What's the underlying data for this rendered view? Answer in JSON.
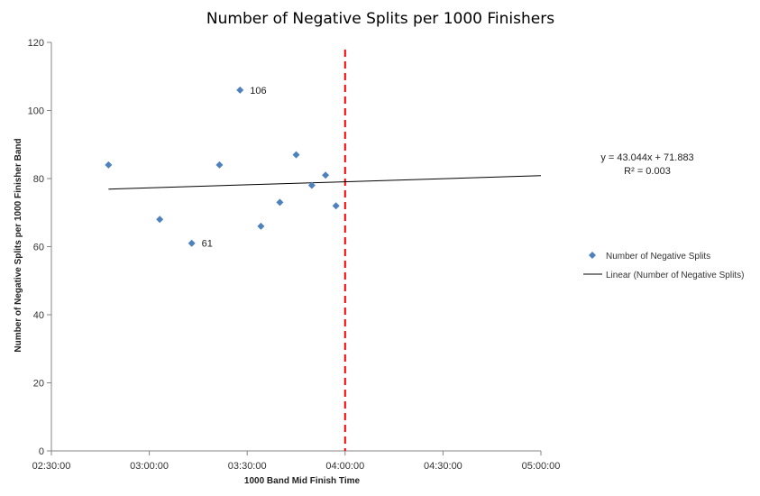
{
  "chart_data": {
    "type": "scatter",
    "title": "Number of Negative Splits per 1000 Finishers",
    "xlabel": "1000 Band Mid Finish Time",
    "ylabel": "Number of Negative Splits per 1000 Finisher Band",
    "xlim_minutes": [
      150,
      300
    ],
    "ylim": [
      0,
      120
    ],
    "x_ticks": [
      {
        "minutes": 150,
        "label": "02:30:00"
      },
      {
        "minutes": 180,
        "label": "03:00:00"
      },
      {
        "minutes": 210,
        "label": "03:30:00"
      },
      {
        "minutes": 240,
        "label": "04:00:00"
      },
      {
        "minutes": 270,
        "label": "04:30:00"
      },
      {
        "minutes": 300,
        "label": "05:00:00"
      }
    ],
    "y_ticks": [
      0,
      20,
      40,
      60,
      80,
      100,
      120
    ],
    "series": [
      {
        "name": "Number of Negative Splits",
        "marker": "diamond",
        "color": "#4f81bd",
        "points": [
          {
            "minutes": 167.5,
            "value": 84
          },
          {
            "minutes": 183.2,
            "value": 68
          },
          {
            "minutes": 193.0,
            "value": 61,
            "label": "61"
          },
          {
            "minutes": 201.5,
            "value": 84
          },
          {
            "minutes": 207.8,
            "value": 106,
            "label": "106"
          },
          {
            "minutes": 214.2,
            "value": 66
          },
          {
            "minutes": 220.0,
            "value": 73
          },
          {
            "minutes": 225.0,
            "value": 87
          },
          {
            "minutes": 229.8,
            "value": 78
          },
          {
            "minutes": 234.0,
            "value": 81
          },
          {
            "minutes": 237.2,
            "value": 72
          }
        ]
      }
    ],
    "trendline": {
      "name": "Linear (Number of Negative Splits)",
      "color": "#000000",
      "from": {
        "minutes": 167.5,
        "value": 76.9
      },
      "to": {
        "minutes": 300,
        "value": 80.85
      },
      "equation": "y = 43.044x + 71.883",
      "r_squared": "R² = 0.003"
    },
    "reference_line": {
      "minutes": 240,
      "color": "#ff0000",
      "style": "dashed"
    },
    "legend": {
      "placement": "right",
      "items": [
        {
          "label": "Number of Negative Splits",
          "kind": "marker"
        },
        {
          "label": "Linear (Number of Negative Splits)",
          "kind": "line"
        }
      ]
    }
  }
}
